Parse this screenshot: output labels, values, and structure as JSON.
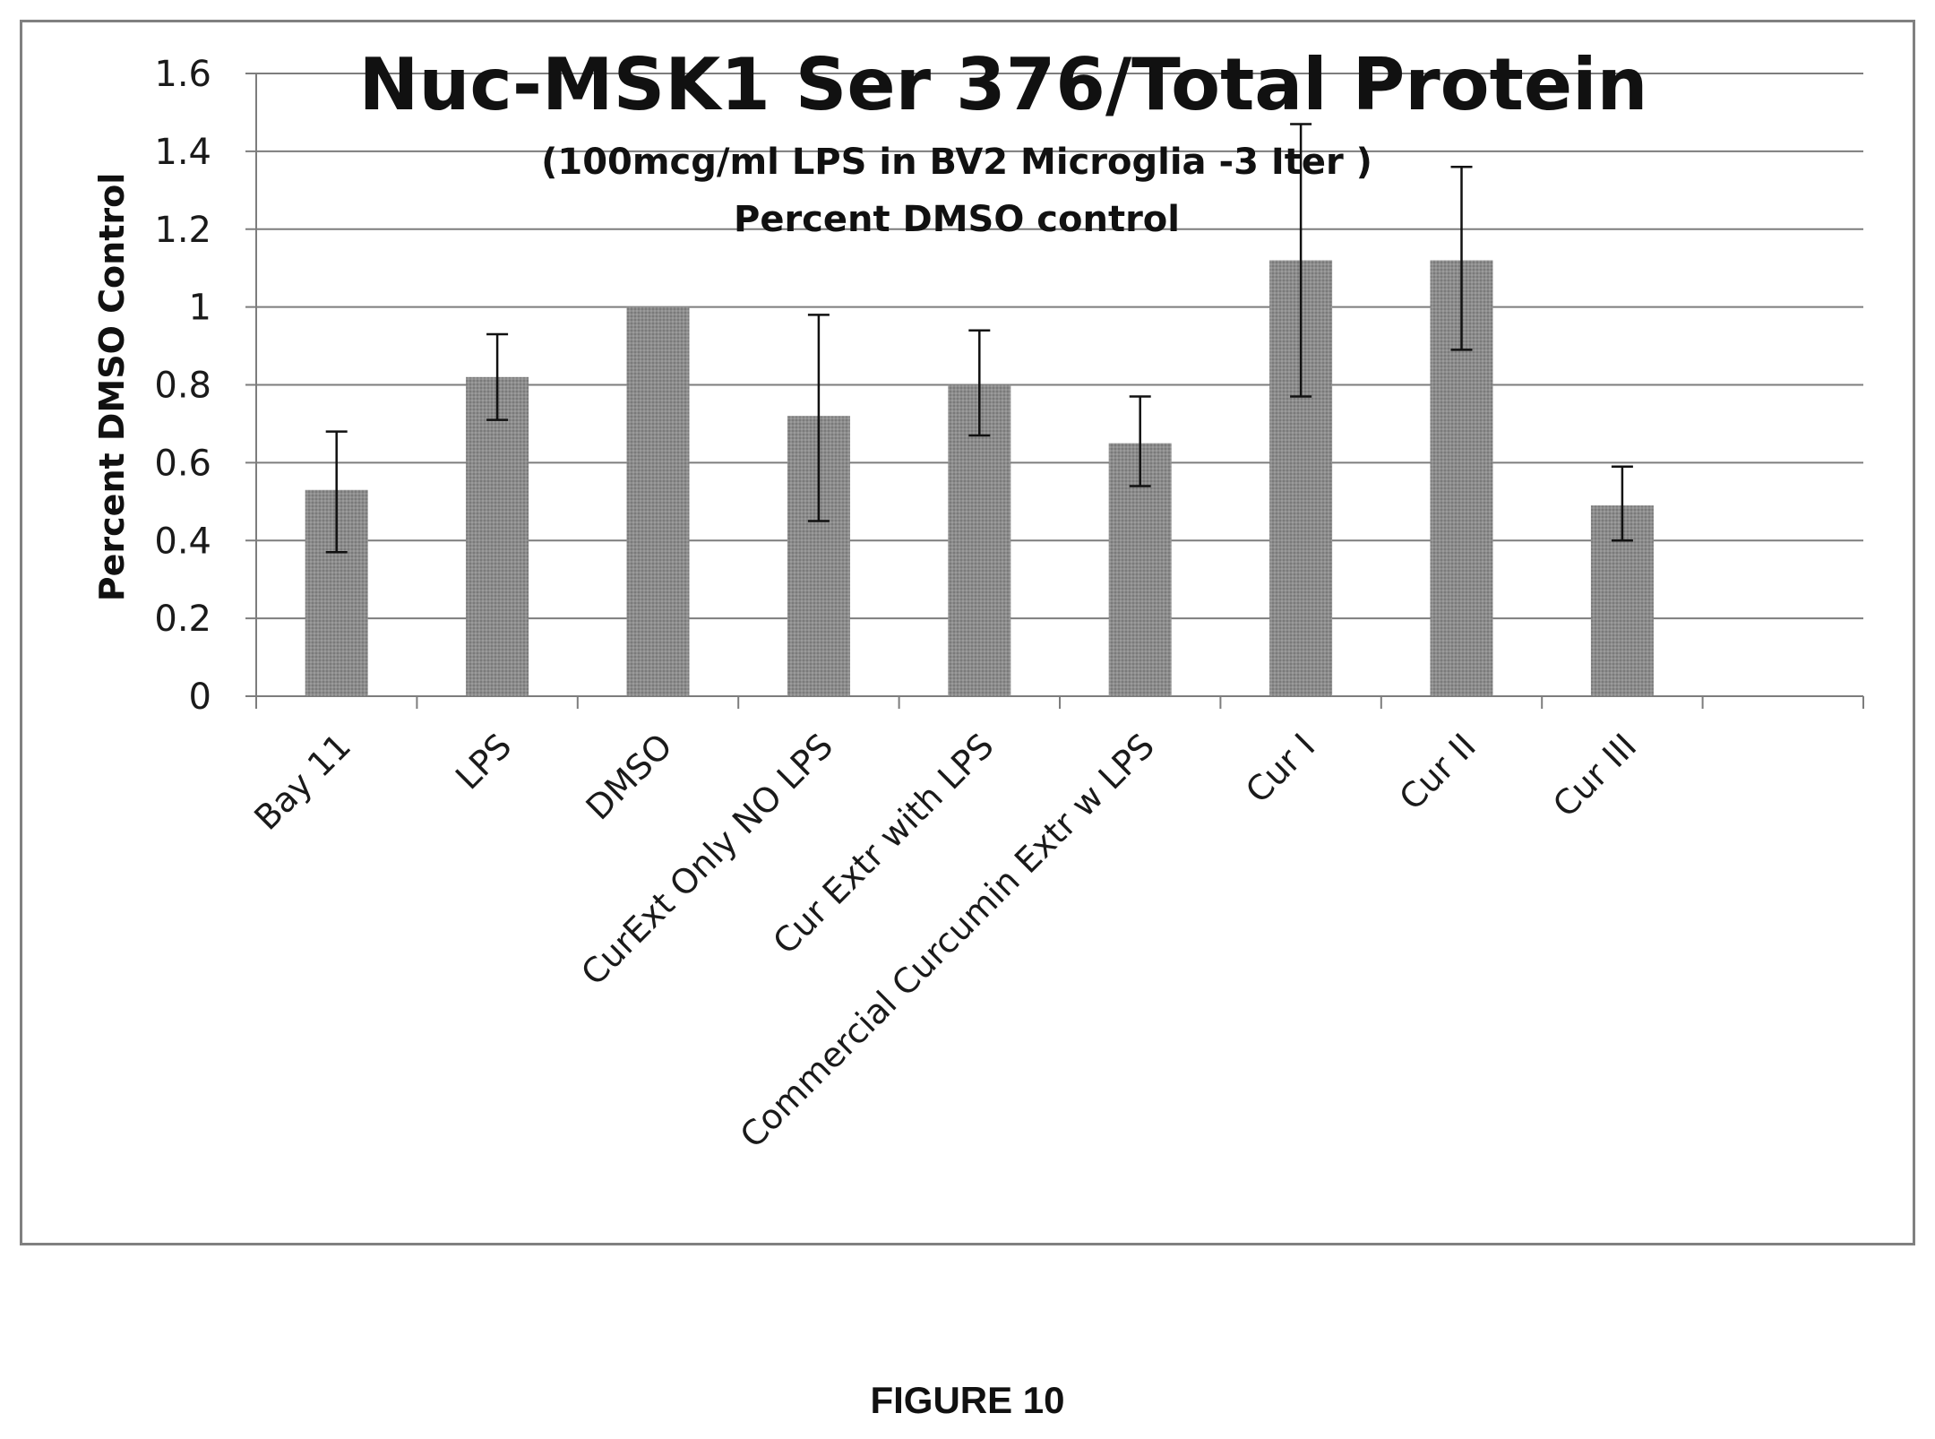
{
  "chart_data": {
    "type": "bar",
    "title": "Nuc-MSK1 Ser 376/Total Protein",
    "subtitle_lines": [
      "(100mcg/ml LPS in BV2 Microglia -3 Iter )",
      "Percent DMSO control"
    ],
    "xlabel": "",
    "ylabel": "Percent DMSO Control",
    "ylim": [
      0,
      1.6
    ],
    "yticks": [
      0,
      0.2,
      0.4,
      0.6,
      0.8,
      1,
      1.2,
      1.4,
      1.6
    ],
    "ytick_labels": [
      "0",
      "0.2",
      "0.4",
      "0.6",
      "0.8",
      "1",
      "1.2",
      "1.4",
      "1.6"
    ],
    "grid": "horizontal",
    "categories": [
      "Bay 11",
      "LPS",
      "DMSO",
      "CurExt Only NO LPS",
      "Cur Extr with LPS",
      "Commercial Curcumin Extr w LPS",
      "Cur I",
      "Cur II",
      "Cur III",
      ""
    ],
    "values": [
      0.53,
      0.82,
      1.0,
      0.72,
      0.8,
      0.65,
      1.12,
      1.12,
      0.49,
      null
    ],
    "error_bars": [
      [
        0.37,
        0.68
      ],
      [
        0.71,
        0.93
      ],
      [
        1.0,
        1.0
      ],
      [
        0.45,
        0.98
      ],
      [
        0.67,
        0.94
      ],
      [
        0.54,
        0.77
      ],
      [
        0.77,
        1.47
      ],
      [
        0.89,
        1.36
      ],
      [
        0.4,
        0.59
      ],
      null
    ],
    "bar_color": "#8c8c8c"
  },
  "figure_caption": "FIGURE 10"
}
